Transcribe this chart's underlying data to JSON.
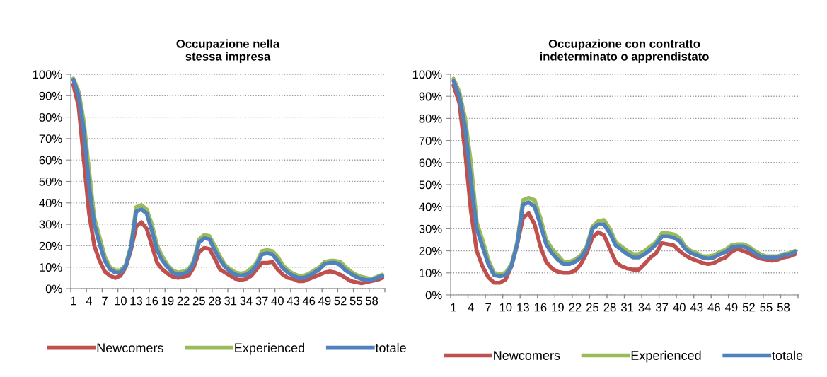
{
  "chart_data": [
    {
      "type": "line",
      "title": "Occupazione nella\nstessa impresa",
      "categories": [
        "1",
        null,
        null,
        "4",
        null,
        null,
        "7",
        null,
        null,
        "10",
        null,
        null,
        "13",
        null,
        null,
        "16",
        null,
        null,
        "19",
        null,
        null,
        "22",
        null,
        null,
        "25",
        null,
        null,
        "28",
        null,
        null,
        "31",
        null,
        null,
        "34",
        null,
        null,
        "37",
        null,
        null,
        "40",
        null,
        null,
        "43",
        null,
        null,
        "46",
        null,
        null,
        "49",
        null,
        null,
        "52",
        null,
        null,
        "55",
        null,
        null,
        "58",
        null,
        null
      ],
      "series": [
        {
          "name": "Newcomers",
          "color": "#c0504d",
          "values": [
            95,
            85,
            60,
            35,
            20,
            13,
            8,
            6,
            5,
            6,
            10,
            18,
            29,
            31,
            28,
            20,
            12,
            9,
            7,
            5.5,
            5,
            5.5,
            6,
            10,
            17,
            19,
            18.5,
            14,
            9,
            7.5,
            6,
            4.5,
            4,
            4.5,
            6,
            9,
            12,
            12,
            12.5,
            9,
            6.5,
            5,
            4.5,
            3.5,
            3.5,
            4.5,
            5.5,
            6.5,
            7.5,
            8,
            7.5,
            6.5,
            5,
            3.5,
            3,
            2.5,
            3,
            3.5,
            4,
            5
          ]
        },
        {
          "name": "Experienced",
          "color": "#9bbb59",
          "values": [
            98,
            92,
            78,
            55,
            33,
            24,
            15,
            10,
            8.5,
            8.5,
            11,
            20,
            38,
            39,
            37,
            30,
            20,
            15,
            11,
            8.5,
            7.5,
            8,
            9,
            13,
            23,
            25,
            24.5,
            20,
            15,
            11,
            9,
            7.5,
            7,
            7.5,
            9.5,
            12,
            17.5,
            18,
            17.5,
            15,
            11,
            8.5,
            7,
            6,
            6,
            7,
            8.5,
            10,
            12.5,
            13,
            13,
            12.5,
            10,
            8,
            6.5,
            5.5,
            5,
            4.5,
            5.5,
            6.5
          ]
        },
        {
          "name": "totale",
          "color": "#4f81bd",
          "values": [
            97.5,
            90,
            74,
            48,
            30,
            21,
            13,
            9,
            7.5,
            7.5,
            10.5,
            19,
            36,
            37,
            35,
            27,
            18,
            13,
            10,
            7.5,
            6.5,
            7,
            8,
            12,
            21.5,
            23.5,
            23,
            18,
            13.5,
            10,
            8,
            6.5,
            6,
            6.5,
            8,
            11,
            16,
            16.5,
            16,
            13,
            9.5,
            7.5,
            6,
            5,
            5,
            6,
            7.5,
            9,
            11.5,
            12,
            12,
            11,
            8.5,
            7,
            5.5,
            4.5,
            4,
            4,
            5,
            6
          ]
        }
      ],
      "ylim": [
        0,
        100
      ],
      "yticks": [
        {
          "value": 0,
          "label": "0%"
        },
        {
          "value": 10,
          "label": "10%"
        },
        {
          "value": 20,
          "label": "20%"
        },
        {
          "value": 30,
          "label": "30%"
        },
        {
          "value": 40,
          "label": "40%"
        },
        {
          "value": 50,
          "label": "50%"
        },
        {
          "value": 60,
          "label": "60%"
        },
        {
          "value": 70,
          "label": "70%"
        },
        {
          "value": 80,
          "label": "80%"
        },
        {
          "value": 90,
          "label": "90%"
        },
        {
          "value": 100,
          "label": "100%"
        }
      ],
      "grid": "y",
      "legend": "bottom",
      "marker": "none",
      "line_style": "solid"
    },
    {
      "type": "line",
      "title": "Occupazione con contratto\nindeterminato o apprendistato",
      "categories": [
        "1",
        null,
        null,
        "4",
        null,
        null,
        "7",
        null,
        null,
        "10",
        null,
        null,
        "13",
        null,
        null,
        "16",
        null,
        null,
        "19",
        null,
        null,
        "22",
        null,
        null,
        "25",
        null,
        null,
        "28",
        null,
        null,
        "31",
        null,
        null,
        "34",
        null,
        null,
        "37",
        null,
        null,
        "40",
        null,
        null,
        "43",
        null,
        null,
        "46",
        null,
        null,
        "49",
        null,
        null,
        "52",
        null,
        null,
        "55",
        null,
        null,
        "58",
        null,
        null
      ],
      "series": [
        {
          "name": "Newcomers",
          "color": "#c0504d",
          "values": [
            95,
            87,
            65,
            38,
            20,
            13,
            8,
            5.5,
            5.5,
            7,
            13,
            23,
            35,
            37,
            32,
            22,
            15,
            12,
            10.5,
            10,
            10,
            11,
            14,
            19,
            26,
            28.5,
            27,
            21,
            15,
            13,
            12,
            11.5,
            11.5,
            14,
            17,
            19,
            23.5,
            23,
            22.5,
            20,
            18,
            16.5,
            15.5,
            14.5,
            14,
            14.5,
            16,
            17,
            19.5,
            21,
            20,
            19,
            17.5,
            16.5,
            16,
            15.5,
            16,
            17,
            17.5,
            18.5
          ]
        },
        {
          "name": "Experienced",
          "color": "#9bbb59",
          "values": [
            98,
            92,
            80,
            60,
            33,
            25,
            16,
            10,
            9.5,
            10,
            14,
            24,
            43,
            44,
            43,
            35,
            25,
            21,
            18,
            15,
            15,
            16,
            18,
            22,
            31,
            33.5,
            34,
            30,
            24,
            22,
            20,
            18.5,
            18.5,
            20,
            22,
            24,
            28,
            28,
            27.5,
            26,
            22,
            20,
            19,
            17.5,
            17.5,
            18,
            19.5,
            20.5,
            22.5,
            23,
            23,
            22,
            20,
            18.5,
            17.5,
            17.5,
            17.5,
            18.5,
            19,
            20
          ]
        },
        {
          "name": "totale",
          "color": "#4f81bd",
          "values": [
            97,
            90,
            76,
            52,
            30,
            22,
            14,
            9,
            8.5,
            9,
            13,
            23,
            41,
            42,
            40,
            32,
            23,
            19,
            16,
            14,
            14,
            15,
            17,
            21,
            30,
            32,
            32,
            28,
            22.5,
            20.5,
            18.5,
            17,
            17,
            18.5,
            20.5,
            23,
            26.5,
            26.5,
            26,
            24.5,
            21,
            19,
            18,
            17,
            16.5,
            17,
            18.5,
            19.5,
            21.5,
            22,
            22,
            21,
            19,
            17.5,
            17,
            17,
            17,
            18,
            18.5,
            19.5
          ]
        }
      ],
      "ylim": [
        0,
        100
      ],
      "yticks": [
        {
          "value": 0,
          "label": "0%"
        },
        {
          "value": 10,
          "label": "10%"
        },
        {
          "value": 20,
          "label": "20%"
        },
        {
          "value": 30,
          "label": "30%"
        },
        {
          "value": 40,
          "label": "40%"
        },
        {
          "value": 50,
          "label": "50%"
        },
        {
          "value": 60,
          "label": "60%"
        },
        {
          "value": 70,
          "label": "70%"
        },
        {
          "value": 80,
          "label": "80%"
        },
        {
          "value": 90,
          "label": "90%"
        },
        {
          "value": 100,
          "label": "100%"
        }
      ],
      "grid": "y",
      "legend": "bottom",
      "marker": "none",
      "line_style": "solid"
    }
  ]
}
